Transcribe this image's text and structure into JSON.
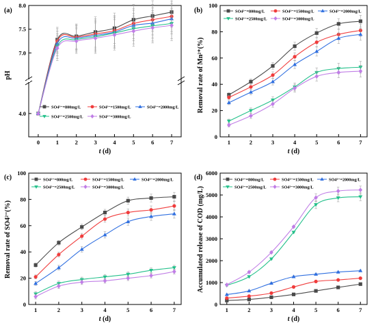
{
  "colors": {
    "s800": "#4a4a4a",
    "s1500": "#f03c3c",
    "s2000": "#2f6fe0",
    "s2500": "#22c08a",
    "s3000": "#c07ee6"
  },
  "legend_labels": [
    "SO4²⁻=800mg/L",
    "SO4²⁻=1500mg/L",
    "SO4²⁻=2000mg/L",
    "SO4²⁻=2500mg/L",
    "SO4²⁻=3000mg/L"
  ],
  "chart_data": [
    {
      "panel": "(a)",
      "type": "line",
      "ylabel": "pH",
      "xlabel": "t (d)",
      "x": [
        0,
        1,
        2,
        3,
        4,
        5,
        6,
        7
      ],
      "xlim": [
        -0.5,
        7.5
      ],
      "y_break": true,
      "y_lower_ticks": [
        "4.0"
      ],
      "y_upper_ticks": [
        "7.0",
        "7.5",
        "8.0"
      ],
      "legend_position": "lower-right",
      "series": [
        {
          "name": "SO4²⁻=800mg/L",
          "values": [
            4.0,
            7.28,
            7.35,
            7.44,
            7.52,
            7.7,
            7.78,
            7.86
          ]
        },
        {
          "name": "SO4²⁻=1500mg/L",
          "values": [
            4.0,
            7.25,
            7.33,
            7.4,
            7.47,
            7.62,
            7.7,
            7.77
          ]
        },
        {
          "name": "SO4²⁻=2000mg/L",
          "values": [
            4.0,
            7.2,
            7.31,
            7.37,
            7.44,
            7.58,
            7.63,
            7.72
          ]
        },
        {
          "name": "SO4²⁻=2500mg/L",
          "values": [
            4.0,
            7.14,
            7.28,
            7.34,
            7.42,
            7.51,
            7.57,
            7.62
          ]
        },
        {
          "name": "SO4²⁻=3000mg/L",
          "values": [
            4.0,
            7.1,
            7.25,
            7.31,
            7.38,
            7.46,
            7.53,
            7.58
          ]
        }
      ]
    },
    {
      "panel": "(b)",
      "type": "line",
      "ylabel": "Removal rate of Mn²⁺(%)",
      "xlabel": "t (d)",
      "x": [
        1,
        2,
        3,
        4,
        5,
        6,
        7
      ],
      "xlim": [
        0.6,
        7.3
      ],
      "ylim": [
        0,
        100
      ],
      "yticks": [
        0,
        20,
        40,
        60,
        80,
        100
      ],
      "legend_position": "top",
      "series": [
        {
          "name": "SO4²⁻=800mg/L",
          "values": [
            32,
            42,
            54,
            69,
            79,
            86,
            88
          ]
        },
        {
          "name": "SO4²⁻=1500mg/L",
          "values": [
            30,
            38,
            47,
            61,
            72,
            78,
            81
          ]
        },
        {
          "name": "SO4²⁻=2000mg/L",
          "values": [
            26,
            34,
            42,
            55,
            65,
            75,
            78
          ]
        },
        {
          "name": "SO4²⁻=2500mg/L",
          "values": [
            12,
            20,
            28,
            38,
            49,
            52,
            53
          ]
        },
        {
          "name": "SO4²⁻=3000mg/L",
          "values": [
            9,
            16,
            25,
            37,
            46,
            49,
            50
          ]
        }
      ]
    },
    {
      "panel": "(c)",
      "type": "line",
      "ylabel": "Removal rate of SO4²⁻(%)",
      "xlabel": "t (d)",
      "x": [
        1,
        2,
        3,
        4,
        5,
        6,
        7
      ],
      "xlim": [
        0.7,
        7.3
      ],
      "ylim": [
        0,
        100
      ],
      "yticks": [
        0,
        20,
        40,
        60,
        80,
        100
      ],
      "legend_position": "top",
      "series": [
        {
          "name": "SO4²⁻=800mg/L",
          "values": [
            30,
            47,
            59,
            70,
            79,
            81,
            82
          ]
        },
        {
          "name": "SO4²⁻=1500mg/L",
          "values": [
            21,
            38,
            52,
            65,
            70,
            72,
            75
          ]
        },
        {
          "name": "SO4²⁻=2000mg/L",
          "values": [
            16,
            28,
            42,
            53,
            63,
            67,
            69
          ]
        },
        {
          "name": "SO4²⁻=2500mg/L",
          "values": [
            8,
            16,
            19,
            21,
            23,
            26,
            28
          ]
        },
        {
          "name": "SO4²⁻=3000mg/L",
          "values": [
            6,
            14,
            17,
            18,
            20,
            22,
            25
          ]
        }
      ]
    },
    {
      "panel": "(d)",
      "type": "line",
      "ylabel": "Accumulated release of COD (mg/L)",
      "xlabel": "t (d)",
      "x": [
        1,
        2,
        3,
        4,
        5,
        6,
        7
      ],
      "xlim": [
        0.7,
        7.3
      ],
      "ylim": [
        0,
        6000
      ],
      "yticks": [
        0,
        1000,
        2000,
        3000,
        4000,
        5000,
        6000
      ],
      "legend_position": "top",
      "series": [
        {
          "name": "SO4²⁻=800mg/L",
          "values": [
            180,
            230,
            330,
            460,
            620,
            780,
            930
          ]
        },
        {
          "name": "SO4²⁻=1500mg/L",
          "values": [
            290,
            380,
            520,
            800,
            1050,
            1120,
            1200
          ]
        },
        {
          "name": "SO4²⁻=2000mg/L",
          "values": [
            450,
            620,
            970,
            1270,
            1380,
            1480,
            1540
          ]
        },
        {
          "name": "SO4²⁻=2500mg/L",
          "values": [
            870,
            1270,
            2080,
            3300,
            4560,
            4870,
            4920
          ]
        },
        {
          "name": "SO4²⁻=3000mg/L",
          "values": [
            900,
            1480,
            2380,
            3550,
            4880,
            5180,
            5230
          ]
        }
      ]
    }
  ]
}
